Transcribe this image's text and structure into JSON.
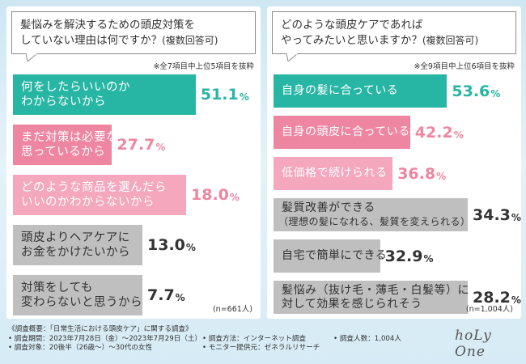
{
  "colors": {
    "teal": "#28b6a4",
    "pink": "#ee86a1",
    "light_pink": "#f4a7bd",
    "gray": "#bfbfbf",
    "gray_text": "#333333"
  },
  "left": {
    "question_line1": "髪悩みを解決するための頭皮対策を",
    "question_line2": "していない理由は何ですか？",
    "question_note": "(複数回答可)",
    "note": "※全7項目中上位5項目を抜粋",
    "n_label": "(n=661人)"
  },
  "right": {
    "question_line1": "どのような頭皮ケアであれば",
    "question_line2": "やってみたいと思いますか？",
    "question_note": "(複数回答可)",
    "note": "※全9項目中上位6項目を抜粋",
    "n_label": "(n=1,004人)"
  },
  "chart_data": [
    {
      "type": "bar",
      "orientation": "horizontal",
      "title": "髪悩みを解決するための頭皮対策をしていない理由は何ですか？(複数回答可)",
      "unit": "%",
      "categories": [
        "何をしたらいいのかわからないから",
        "まだ対策は必要ないと思っているから",
        "どのような商品を選んだらいいのかわからないから",
        "頭皮よりヘアケアにお金をかけたいから",
        "対策をしても変わらないと思うから"
      ],
      "label_lines": [
        [
          "何をしたらいいのか",
          "わからないから"
        ],
        [
          "まだ対策は必要ないと",
          "思っているから"
        ],
        [
          "どのような商品を選んだら",
          "いいのかわからないから"
        ],
        [
          "頭皮よりヘアケアに",
          "お金をかけたいから"
        ],
        [
          "対策をしても",
          "変わらないと思うから"
        ]
      ],
      "values": [
        51.1,
        27.7,
        18.0,
        13.0,
        7.7
      ],
      "value_labels": [
        "51.1",
        "27.7",
        "18.0",
        "13.0",
        "7.7"
      ],
      "bar_colors": [
        "#28b6a4",
        "#ee86a1",
        "#f4a7bd",
        "#bfbfbf",
        "#bfbfbf"
      ],
      "label_colors": [
        "#ffffff",
        "#ffffff",
        "#ffffff",
        "#333333",
        "#333333"
      ],
      "pct_colors": [
        "#28b6a4",
        "#ee86a1",
        "#ee86a1",
        "#333333",
        "#333333"
      ],
      "n": "n=661人"
    },
    {
      "type": "bar",
      "orientation": "horizontal",
      "title": "どのような頭皮ケアであればやってみたいと思いますか？(複数回答可)",
      "unit": "%",
      "categories": [
        "自身の髪に合っている",
        "自身の頭皮に合っている",
        "低価格で続けられる",
        "髪質改善ができる（理想の髪になれる、髪質を変えられる）",
        "自宅で簡単にできる",
        "髪悩み（抜け毛・薄毛・白髪等）に対して効果を感じられそう"
      ],
      "label_lines": [
        [
          "自身の髪に合っている"
        ],
        [
          "自身の頭皮に合っている"
        ],
        [
          "低価格で続けられる"
        ],
        [
          "髪質改善ができる",
          "（理想の髪になれる、髪質を変えられる）"
        ],
        [
          "自宅で簡単にできる"
        ],
        [
          "髪悩み（抜け毛・薄毛・白髪等）に",
          "対して効果を感じられそう"
        ]
      ],
      "values": [
        53.6,
        42.2,
        36.8,
        34.3,
        32.9,
        28.2
      ],
      "value_labels": [
        "53.6",
        "42.2",
        "36.8",
        "34.3",
        "32.9",
        "28.2"
      ],
      "bar_colors": [
        "#28b6a4",
        "#ee86a1",
        "#f4a7bd",
        "#bfbfbf",
        "#bfbfbf",
        "#bfbfbf"
      ],
      "label_colors": [
        "#ffffff",
        "#ffffff",
        "#ffffff",
        "#333333",
        "#333333",
        "#333333"
      ],
      "pct_colors": [
        "#28b6a4",
        "#ee86a1",
        "#ee86a1",
        "#333333",
        "#333333",
        "#333333"
      ],
      "n": "n=1,004人"
    }
  ],
  "footer": {
    "col1": [
      "《調査概要：「日常生活における頭皮ケア」に関する調査》",
      "• 調査期間：2023年7月28日（金）～2023年7月29日（土）",
      "• 調査対象：20後半（26歳～）～30代の女性"
    ],
    "col2": [
      "",
      "• 調査方法：インターネット調査",
      "• モニター提供元：ゼネラルリサーチ"
    ],
    "col3": [
      "",
      "• 調査人数：1,004人",
      ""
    ]
  },
  "logo": "hoLy One"
}
